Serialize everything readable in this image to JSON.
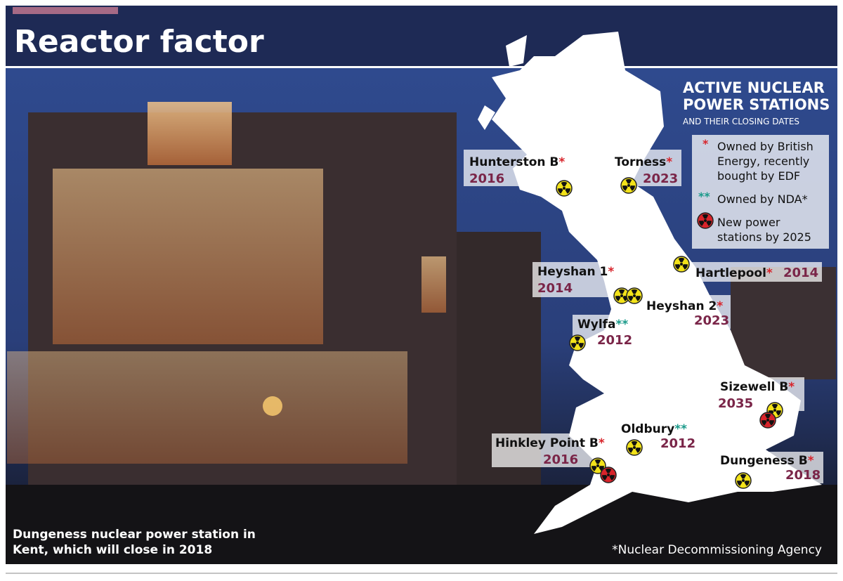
{
  "header": {
    "title": "Reactor factor"
  },
  "map": {
    "heading": [
      "ACTIVE NUCLEAR",
      "POWER STATIONS"
    ],
    "subheading": "AND THEIR CLOSING DATES",
    "legend": [
      {
        "symbol": "*",
        "lines": [
          "Owned by British",
          "Energy, recently",
          "bought by EDF"
        ]
      },
      {
        "symbol": "**",
        "lines": [
          "Owned by NDA*"
        ]
      },
      {
        "lines": [
          "New power",
          "stations by 2025"
        ]
      }
    ],
    "stations": [
      {
        "name": "Hunterston B",
        "mark": "*",
        "year": 2016
      },
      {
        "name": "Torness",
        "mark": "*",
        "year": 2023
      },
      {
        "name": "Heyshan 1",
        "mark": "*",
        "year": 2014
      },
      {
        "name": "Hartlepool",
        "mark": "*",
        "year": 2014
      },
      {
        "name": "Heyshan 2",
        "mark": "*",
        "year": 2023
      },
      {
        "name": "Wylfa",
        "mark": "**",
        "year": 2012
      },
      {
        "name": "Sizewell B",
        "mark": "*",
        "year": 2035
      },
      {
        "name": "Hinkley Point B",
        "mark": "*",
        "year": 2016
      },
      {
        "name": "Oldbury",
        "mark": "**",
        "year": 2012
      },
      {
        "name": "Dungeness B",
        "mark": "*",
        "year": 2018
      }
    ]
  },
  "caption": [
    "Dungeness nuclear power station in",
    "Kent, which will close in 2018"
  ],
  "footnote": "*Nuclear Decommissioning Agency"
}
